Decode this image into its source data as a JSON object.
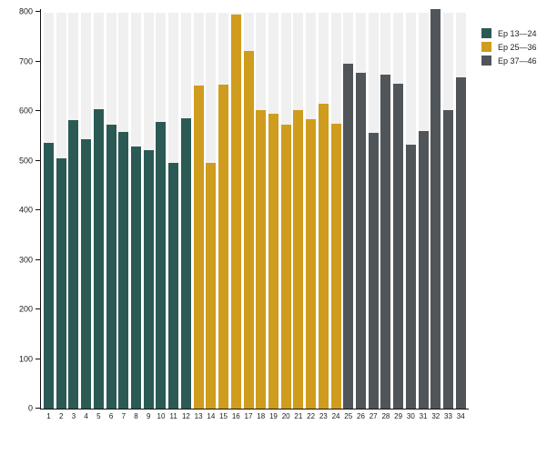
{
  "chart_data": {
    "type": "bar",
    "title": "",
    "xlabel": "",
    "ylabel": "",
    "ylim": [
      0,
      800
    ],
    "y_ticks": [
      0,
      100,
      200,
      300,
      400,
      500,
      600,
      700,
      800
    ],
    "grid": false,
    "legend_position": "top-right",
    "background_track_color": "#f0f0f0",
    "axis_color": "#111111",
    "categories": [
      "1",
      "2",
      "3",
      "4",
      "5",
      "6",
      "7",
      "8",
      "9",
      "10",
      "11",
      "12",
      "13",
      "14",
      "15",
      "16",
      "17",
      "18",
      "19",
      "20",
      "21",
      "22",
      "23",
      "24",
      "25",
      "26",
      "27",
      "28",
      "29",
      "30",
      "31",
      "32",
      "33",
      "34"
    ],
    "series": [
      {
        "name": "Ep 13—24",
        "color": "#2b5a55",
        "categories": [
          "1",
          "2",
          "3",
          "4",
          "5",
          "6",
          "7",
          "8",
          "9",
          "10",
          "11",
          "12"
        ],
        "values": [
          536,
          505,
          581,
          544,
          603,
          573,
          557,
          529,
          521,
          578,
          496,
          586
        ]
      },
      {
        "name": "Ep 25—36",
        "color": "#cf9c1d",
        "categories": [
          "13",
          "14",
          "15",
          "16",
          "17",
          "18",
          "19",
          "20",
          "21",
          "22",
          "23",
          "24"
        ],
        "values": [
          652,
          495,
          654,
          794,
          721,
          602,
          595,
          573,
          602,
          583,
          614,
          575
        ]
      },
      {
        "name": "Ep 37—46",
        "color": "#50555a",
        "categories": [
          "25",
          "26",
          "27",
          "28",
          "29",
          "30",
          "31",
          "32",
          "33",
          "34"
        ],
        "values": [
          696,
          677,
          556,
          673,
          655,
          532,
          560,
          806,
          602,
          668
        ]
      }
    ]
  },
  "legend": {
    "items": [
      {
        "label": "Ep 13—24",
        "color": "#2b5a55"
      },
      {
        "label": "Ep 25—36",
        "color": "#cf9c1d"
      },
      {
        "label": "Ep 37—46",
        "color": "#50555a"
      }
    ]
  }
}
